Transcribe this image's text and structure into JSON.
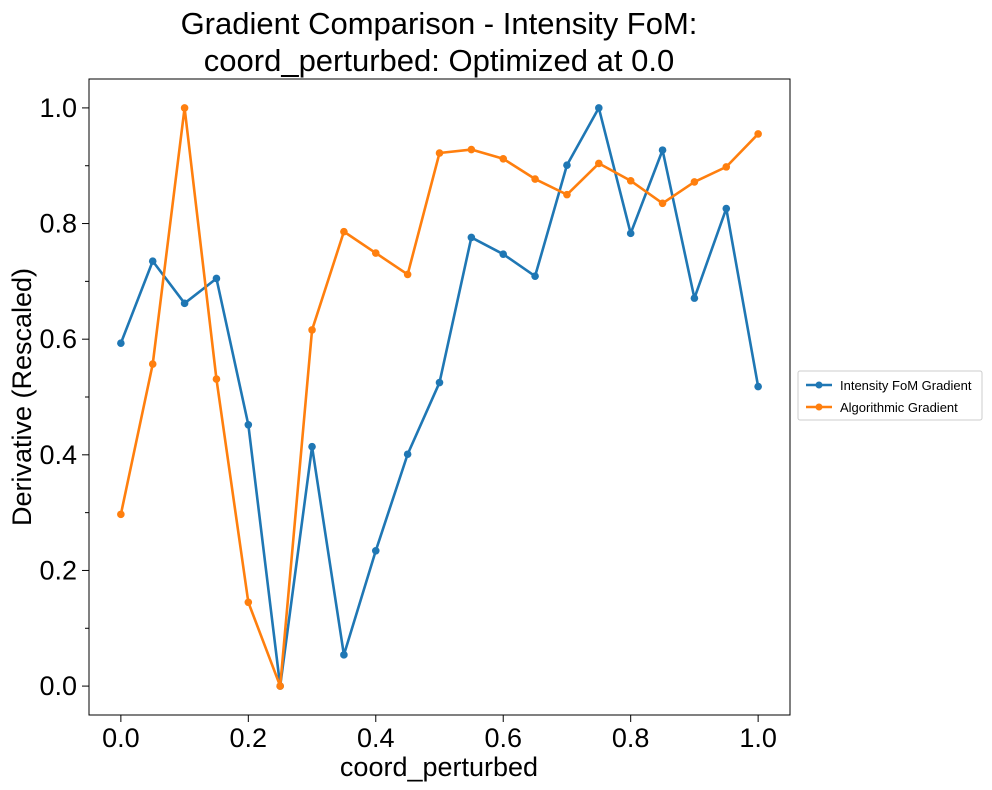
{
  "chart_data": {
    "type": "line",
    "title_lines": [
      "Gradient Comparison - Intensity FoM:",
      "coord_perturbed: Optimized at 0.0"
    ],
    "xlabel": "coord_perturbed",
    "ylabel": "Derivative (Rescaled)",
    "xlim": [
      -0.05,
      1.05
    ],
    "ylim": [
      -0.05,
      1.05
    ],
    "xticks": [
      0.0,
      0.2,
      0.4,
      0.6,
      0.8,
      1.0
    ],
    "xtick_labels": [
      "0.0",
      "0.2",
      "0.4",
      "0.6",
      "0.8",
      "1.0"
    ],
    "yticks": [
      0.0,
      0.2,
      0.4,
      0.6,
      0.8,
      1.0
    ],
    "ytick_labels": [
      "0.0",
      "0.2",
      "0.4",
      "0.6",
      "0.8",
      "1.0"
    ],
    "grid": false,
    "legend_placement": "center-right-outside",
    "x": [
      0.0,
      0.05,
      0.1,
      0.15,
      0.2,
      0.25,
      0.3,
      0.35,
      0.4,
      0.45,
      0.5,
      0.55,
      0.6,
      0.65,
      0.7,
      0.75,
      0.8,
      0.85,
      0.9,
      0.95,
      1.0
    ],
    "series": [
      {
        "name": "Intensity FoM Gradient",
        "color": "#1f77b4",
        "values": [
          0.593,
          0.735,
          0.662,
          0.705,
          0.452,
          0.0,
          0.414,
          0.054,
          0.234,
          0.401,
          0.525,
          0.776,
          0.747,
          0.709,
          0.901,
          1.0,
          0.783,
          0.927,
          0.671,
          0.826,
          0.518
        ]
      },
      {
        "name": "Algorithmic Gradient",
        "color": "#ff7f0e",
        "values": [
          0.297,
          0.557,
          1.0,
          0.531,
          0.145,
          0.0,
          0.616,
          0.786,
          0.749,
          0.712,
          0.922,
          0.928,
          0.912,
          0.877,
          0.85,
          0.904,
          0.874,
          0.835,
          0.872,
          0.898,
          0.955
        ]
      }
    ]
  }
}
